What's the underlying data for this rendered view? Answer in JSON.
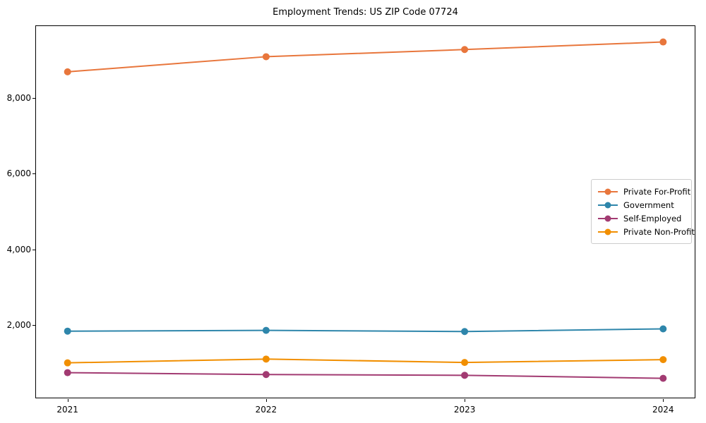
{
  "title": "Employment Trends: US ZIP Code 07724",
  "chart_data": {
    "type": "line",
    "title": "Employment Trends: US ZIP Code 07724",
    "xlabel": "",
    "ylabel": "",
    "x_labels": [
      "2021",
      "2022",
      "2023",
      "2024"
    ],
    "series": [
      {
        "name": "Private For-Profit",
        "color": "#e8763c",
        "values": [
          8700,
          9100,
          9290,
          9490
        ]
      },
      {
        "name": "Government",
        "color": "#2e86ab",
        "values": [
          1830,
          1850,
          1820,
          1890
        ]
      },
      {
        "name": "Self-Employed",
        "color": "#a23b72",
        "values": [
          730,
          680,
          660,
          580
        ]
      },
      {
        "name": "Private Non-Profit",
        "color": "#f18f01",
        "values": [
          990,
          1090,
          1000,
          1075
        ]
      }
    ],
    "ylim": [
      50,
      9930
    ],
    "yticks": [
      2000,
      4000,
      6000,
      8000
    ],
    "ytick_labels": [
      "2,000",
      "4,000",
      "6,000",
      "8,000"
    ],
    "grid": false,
    "legend_position": "center right",
    "marker": "circle",
    "background_color": "#ffffff",
    "frame_color": "#000000"
  }
}
